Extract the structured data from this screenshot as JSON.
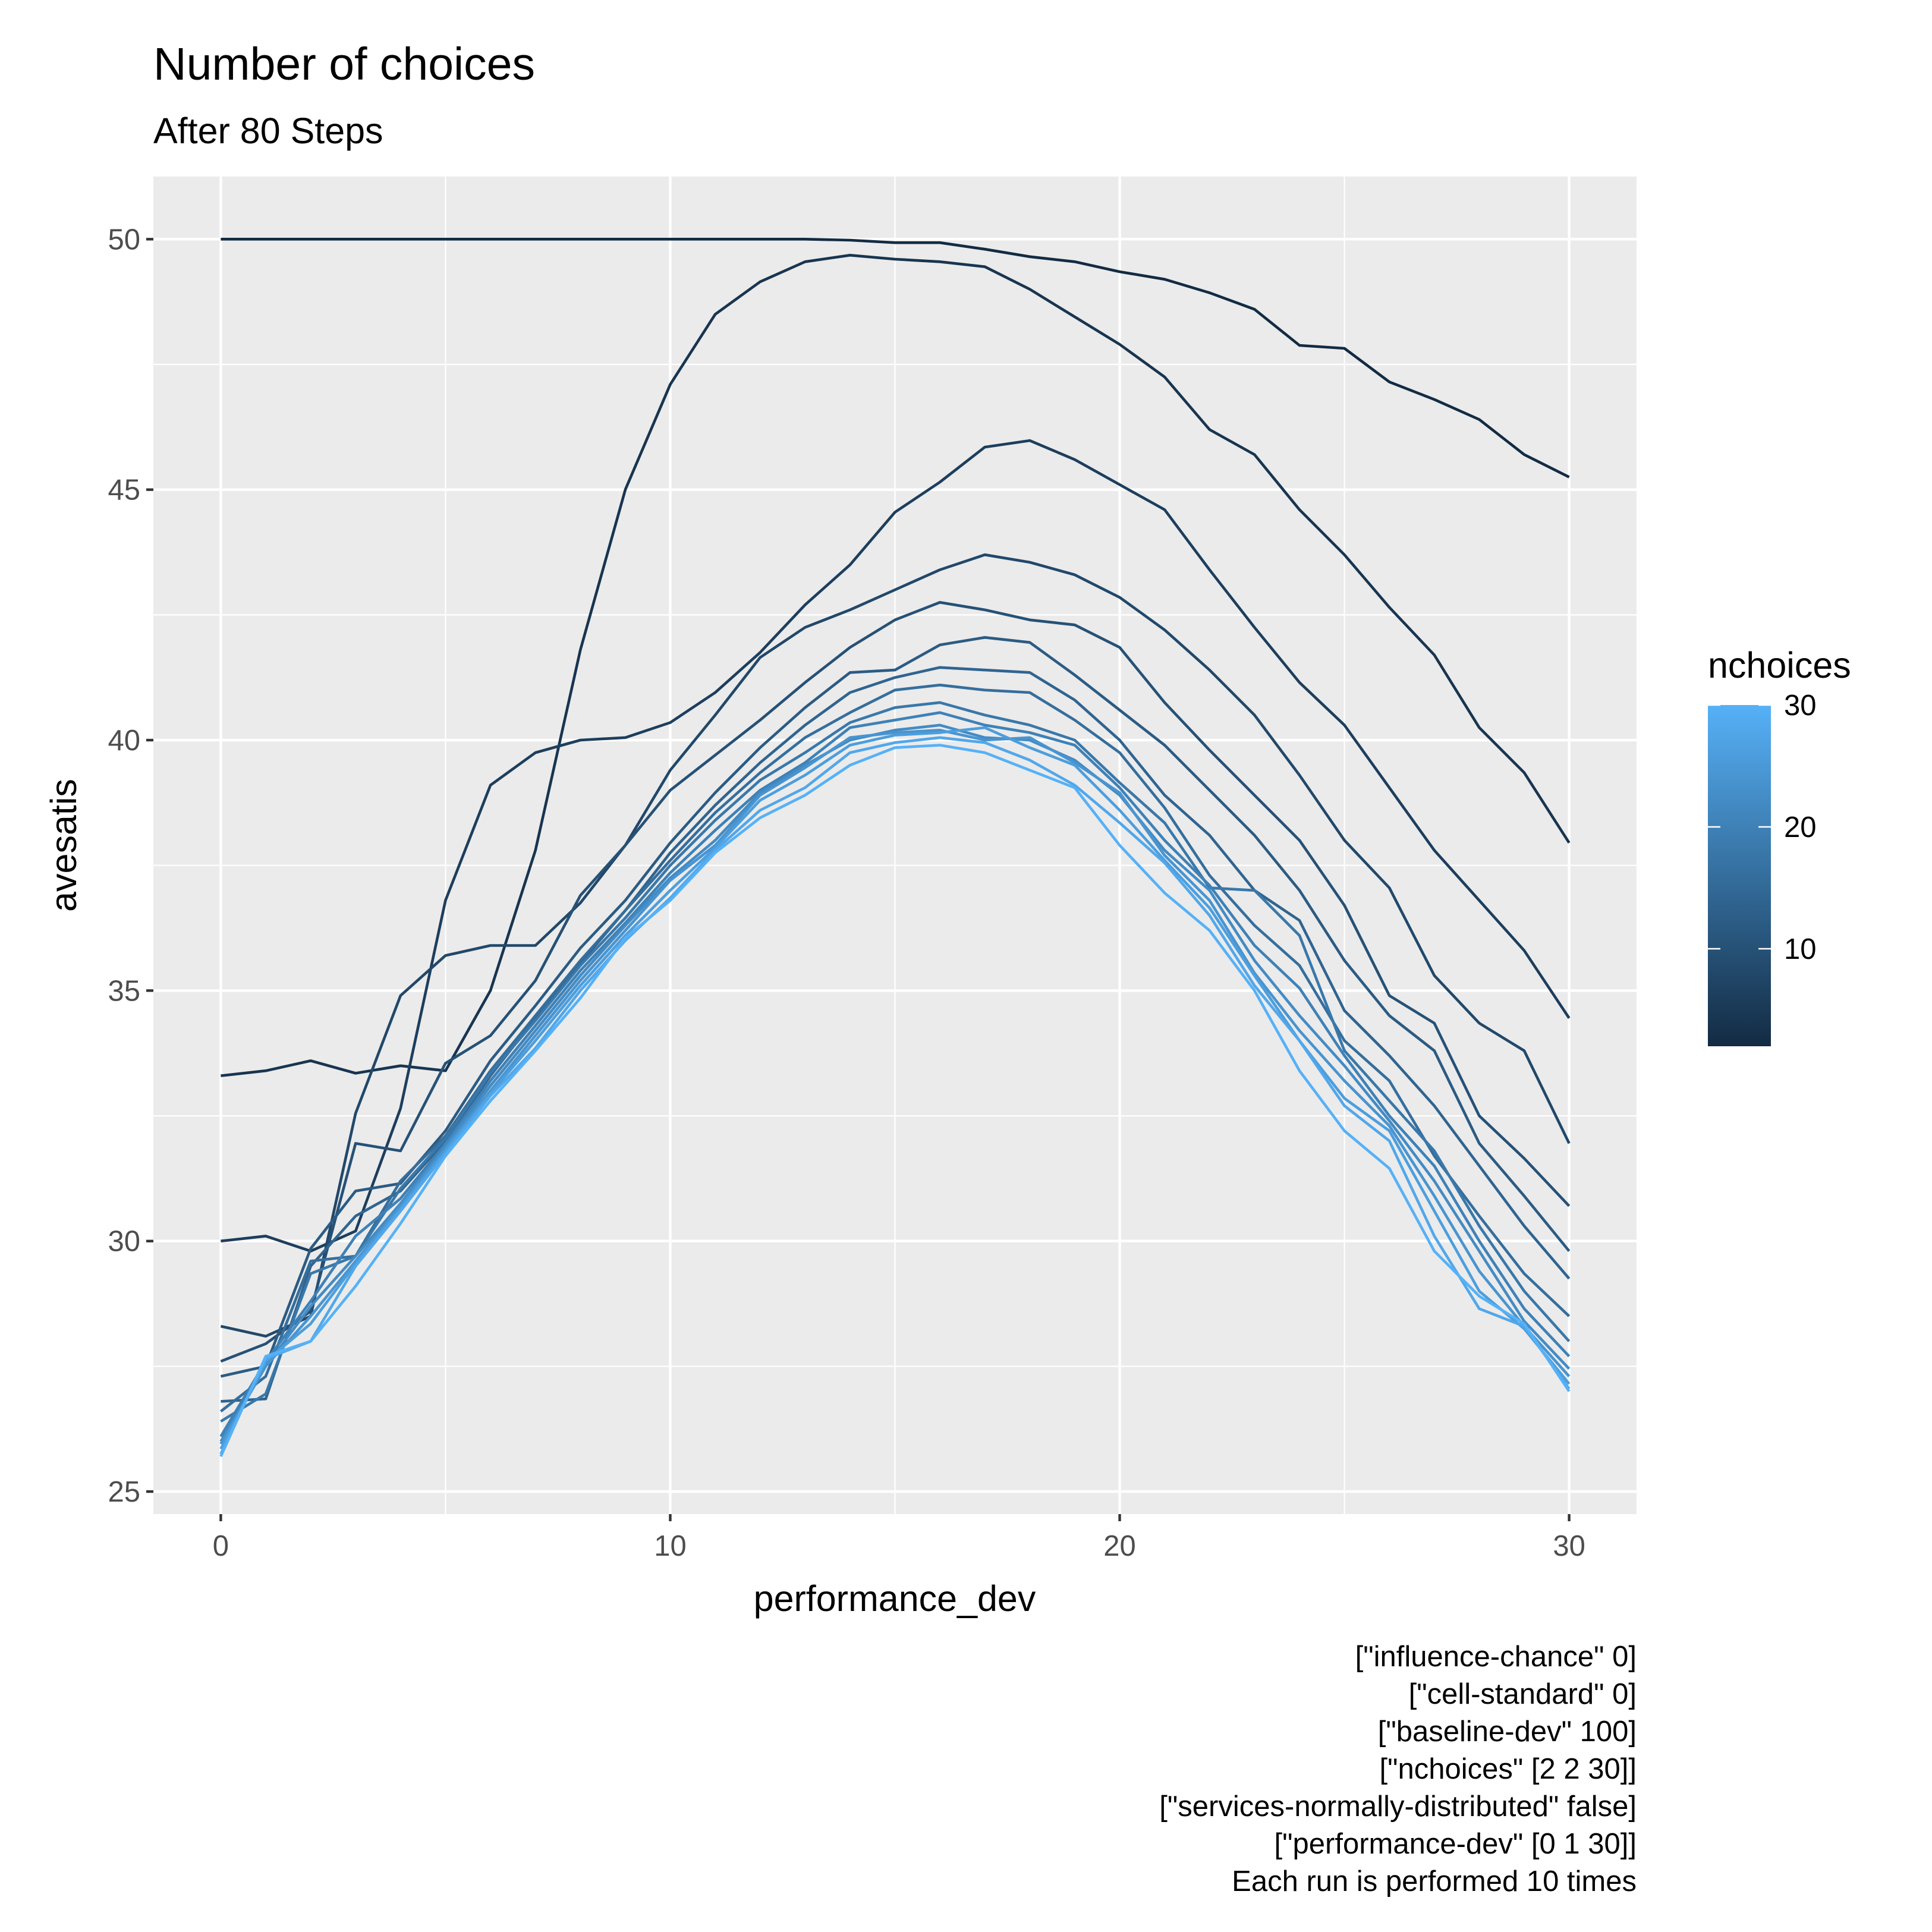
{
  "chart_data": {
    "type": "line",
    "title": "Number of choices",
    "subtitle": "After 80 Steps",
    "xlabel": "performance_dev",
    "ylabel": "avesatis",
    "xlim": [
      -1.5,
      31.5
    ],
    "ylim": [
      24.55,
      51.25
    ],
    "x_ticks": [
      0,
      10,
      20,
      30
    ],
    "x_tick_labels": [
      "0",
      "10",
      "20",
      "30"
    ],
    "y_ticks": [
      25,
      30,
      35,
      40,
      45,
      50
    ],
    "y_tick_labels": [
      "25",
      "30",
      "35",
      "40",
      "45",
      "50"
    ],
    "grid": true,
    "panel_background": "#ebebeb",
    "legend": {
      "title": "nchoices",
      "position": "right",
      "type": "colorbar",
      "range": [
        2,
        30
      ],
      "ticks": [
        10,
        20,
        30
      ],
      "tick_labels": [
        "10",
        "20",
        "30"
      ],
      "low_color": "#132b43",
      "high_color": "#56b1f7"
    },
    "x": [
      0,
      1,
      2,
      3,
      4,
      5,
      6,
      7,
      8,
      9,
      10,
      11,
      12,
      13,
      14,
      15,
      16,
      17,
      18,
      19,
      20,
      21,
      22,
      23,
      24,
      25,
      26,
      27,
      28,
      29,
      30
    ],
    "series": [
      {
        "nchoices": 2,
        "values": [
          50.0,
          50.0,
          50.0,
          50.0,
          50.0,
          50.0,
          50.0,
          50.0,
          50.0,
          50.0,
          50.0,
          50.0,
          50.0,
          50.0,
          49.98,
          49.93,
          49.93,
          49.8,
          49.65,
          49.55,
          49.35,
          49.2,
          48.93,
          48.6,
          47.88,
          47.82,
          47.15,
          46.8,
          46.4,
          45.7,
          45.25
        ]
      },
      {
        "nchoices": 4,
        "values": [
          33.3,
          33.4,
          33.6,
          33.35,
          33.5,
          33.4,
          35.0,
          37.8,
          41.8,
          45.0,
          47.1,
          48.5,
          49.15,
          49.55,
          49.68,
          49.6,
          49.55,
          49.45,
          49.0,
          48.45,
          47.9,
          47.25,
          46.2,
          45.7,
          44.6,
          43.7,
          42.65,
          41.7,
          40.25,
          39.35,
          37.95
        ]
      },
      {
        "nchoices": 6,
        "values": [
          30.0,
          30.1,
          29.8,
          30.2,
          32.65,
          36.8,
          39.1,
          39.75,
          40.0,
          40.05,
          40.35,
          40.95,
          41.75,
          42.7,
          43.5,
          44.55,
          45.15,
          45.85,
          45.98,
          45.6,
          45.1,
          44.6,
          43.4,
          42.25,
          41.15,
          40.3,
          39.05,
          37.8,
          36.8,
          35.8,
          34.45
        ]
      },
      {
        "nchoices": 8,
        "values": [
          28.3,
          28.1,
          28.5,
          32.55,
          34.9,
          35.7,
          35.9,
          35.9,
          36.75,
          37.9,
          39.4,
          40.5,
          41.65,
          42.25,
          42.6,
          43.0,
          43.4,
          43.7,
          43.55,
          43.3,
          42.85,
          42.2,
          41.4,
          40.5,
          39.3,
          38.0,
          37.05,
          35.3,
          34.35,
          33.8,
          31.95
        ]
      },
      {
        "nchoices": 10,
        "values": [
          27.6,
          27.95,
          28.6,
          31.95,
          31.8,
          33.55,
          34.1,
          35.2,
          36.9,
          37.9,
          39.0,
          39.7,
          40.4,
          41.15,
          41.85,
          42.4,
          42.75,
          42.6,
          42.4,
          42.3,
          41.85,
          40.75,
          39.8,
          38.9,
          38.0,
          36.7,
          34.9,
          34.35,
          32.5,
          31.65,
          30.7
        ]
      },
      {
        "nchoices": 12,
        "values": [
          27.3,
          27.5,
          29.85,
          31.0,
          31.15,
          32.2,
          33.6,
          34.7,
          35.85,
          36.8,
          37.95,
          38.95,
          39.85,
          40.65,
          41.35,
          41.4,
          41.9,
          42.05,
          41.95,
          41.3,
          40.6,
          39.9,
          39.0,
          38.1,
          37.0,
          35.6,
          34.5,
          33.8,
          31.95,
          30.9,
          29.8
        ]
      },
      {
        "nchoices": 14,
        "values": [
          26.8,
          26.85,
          29.5,
          30.5,
          31.0,
          32.0,
          33.3,
          34.45,
          35.55,
          36.6,
          37.75,
          38.7,
          39.55,
          40.3,
          40.95,
          41.25,
          41.45,
          41.4,
          41.35,
          40.8,
          40.0,
          38.9,
          38.1,
          37.0,
          36.4,
          34.6,
          33.7,
          32.7,
          31.5,
          30.3,
          29.25
        ]
      },
      {
        "nchoices": 16,
        "values": [
          26.6,
          27.3,
          29.6,
          29.7,
          31.2,
          32.1,
          33.4,
          34.5,
          35.6,
          36.6,
          37.6,
          38.55,
          39.35,
          40.05,
          40.55,
          41.0,
          41.1,
          41.0,
          40.95,
          40.4,
          39.75,
          38.65,
          37.3,
          36.3,
          35.5,
          34.0,
          33.2,
          31.7,
          30.5,
          29.35,
          28.5
        ]
      },
      {
        "nchoices": 18,
        "values": [
          26.4,
          26.95,
          29.35,
          29.7,
          31.05,
          32.05,
          33.35,
          34.4,
          35.5,
          36.45,
          37.5,
          38.4,
          39.2,
          39.75,
          40.35,
          40.65,
          40.75,
          40.5,
          40.3,
          40.0,
          39.15,
          38.35,
          37.05,
          37.0,
          36.1,
          33.8,
          32.8,
          31.8,
          30.3,
          29.0,
          28.0
        ]
      },
      {
        "nchoices": 20,
        "values": [
          26.1,
          27.6,
          28.8,
          30.1,
          30.85,
          31.95,
          33.2,
          34.3,
          35.4,
          36.35,
          37.35,
          38.2,
          39.0,
          39.55,
          40.25,
          40.4,
          40.55,
          40.3,
          40.15,
          39.9,
          39.05,
          38.0,
          37.1,
          35.9,
          35.05,
          33.7,
          32.5,
          31.5,
          30.0,
          28.65,
          27.7
        ]
      },
      {
        "nchoices": 22,
        "values": [
          26.0,
          27.5,
          28.7,
          29.7,
          30.75,
          31.9,
          33.1,
          34.2,
          35.3,
          36.3,
          37.25,
          38.0,
          38.95,
          39.5,
          40.0,
          40.2,
          40.3,
          40.05,
          40.0,
          39.6,
          38.9,
          37.8,
          37.0,
          35.6,
          34.5,
          33.5,
          32.4,
          31.2,
          29.8,
          28.4,
          27.45
        ]
      },
      {
        "nchoices": 24,
        "values": [
          25.95,
          27.5,
          28.5,
          29.6,
          30.7,
          31.85,
          33.0,
          34.1,
          35.2,
          36.2,
          37.2,
          37.9,
          38.9,
          39.45,
          40.05,
          40.15,
          40.2,
          40.0,
          40.05,
          39.55,
          38.95,
          37.7,
          36.8,
          35.35,
          34.2,
          33.2,
          32.3,
          30.9,
          29.4,
          28.3,
          27.3
        ]
      },
      {
        "nchoices": 26,
        "values": [
          25.85,
          27.6,
          28.35,
          29.55,
          30.65,
          31.8,
          32.95,
          34.0,
          35.1,
          36.1,
          37.0,
          37.85,
          38.8,
          39.3,
          39.9,
          40.1,
          40.15,
          40.25,
          39.85,
          39.5,
          38.6,
          37.6,
          36.65,
          35.3,
          34.0,
          32.85,
          32.2,
          30.6,
          29.0,
          28.25,
          27.15
        ]
      },
      {
        "nchoices": 28,
        "values": [
          25.75,
          27.65,
          28.0,
          29.5,
          30.6,
          31.75,
          32.9,
          33.85,
          35.0,
          36.0,
          36.85,
          37.8,
          38.6,
          39.05,
          39.75,
          39.95,
          40.05,
          39.95,
          39.6,
          39.1,
          38.35,
          37.55,
          36.5,
          35.1,
          34.0,
          32.7,
          32.0,
          30.1,
          28.65,
          28.3,
          27.05
        ]
      },
      {
        "nchoices": 30,
        "values": [
          25.7,
          27.7,
          28.0,
          29.1,
          30.35,
          31.7,
          32.8,
          33.8,
          34.85,
          36.05,
          36.8,
          37.75,
          38.45,
          38.9,
          39.5,
          39.85,
          39.9,
          39.75,
          39.4,
          39.05,
          37.9,
          36.95,
          36.2,
          35.0,
          33.4,
          32.2,
          31.45,
          29.8,
          28.9,
          28.35,
          27.0
        ]
      }
    ],
    "caption_lines": [
      "[\"influence-chance\" 0]",
      "[\"cell-standard\" 0]",
      "[\"baseline-dev\" 100]",
      "[\"nchoices\" [2 2 30]]",
      "[\"services-normally-distributed\" false]",
      "[\"performance-dev\" [0 1 30]]",
      "Each run is performed 10 times"
    ]
  }
}
